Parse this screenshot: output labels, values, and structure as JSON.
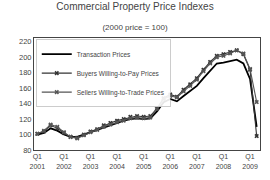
{
  "chart_data": {
    "type": "line",
    "title": "Commercial Property Price Indexes",
    "subtitle": "(2000 price = 100)",
    "categories": [
      "Q1\n2001",
      null,
      null,
      null,
      "Q1\n2002",
      null,
      null,
      null,
      "Q1\n2003",
      null,
      null,
      null,
      "Q1\n2004",
      null,
      null,
      null,
      "Q1\n2005",
      null,
      null,
      null,
      "Q1\n2006",
      null,
      null,
      null,
      "Q1\n2007",
      null,
      null,
      null,
      "Q1\n2008",
      null,
      null,
      null,
      "Q1\n2009",
      null
    ],
    "series": [
      {
        "name": "Transaction Prices",
        "color": "#000000",
        "line_style": "solid",
        "values": [
          100,
          102,
          108,
          105,
          100,
          97,
          97,
          100,
          103,
          106,
          110,
          113,
          116,
          118,
          120,
          121,
          120,
          121,
          130,
          142,
          146,
          143,
          150,
          156,
          163,
          173,
          183,
          192,
          193,
          195,
          197,
          192,
          172,
          110
        ]
      },
      {
        "name": "Buyers Willing-to-Pay Prices",
        "color": "#333333",
        "line_style": "solid",
        "marker": "x",
        "values": [
          101,
          104,
          112,
          108,
          102,
          97,
          96,
          100,
          104,
          107,
          112,
          115,
          118,
          120,
          123,
          124,
          123,
          124,
          134,
          147,
          152,
          149,
          158,
          165,
          173,
          184,
          194,
          202,
          204,
          207,
          209,
          204,
          184,
          98
        ]
      },
      {
        "name": "Sellers Willing-to-Trade Prices",
        "color": "#555555",
        "line_style": "solid",
        "marker": "x",
        "values": [
          101,
          105,
          113,
          110,
          103,
          97,
          95,
          99,
          103,
          106,
          110,
          113,
          116,
          118,
          121,
          122,
          121,
          122,
          133,
          146,
          150,
          148,
          156,
          163,
          171,
          182,
          192,
          200,
          202,
          205,
          209,
          205,
          185,
          142
        ]
      }
    ],
    "ylim": [
      80,
      225
    ],
    "yticks": [
      80,
      100,
      120,
      140,
      160,
      180,
      200,
      220
    ],
    "grid": false,
    "legend": "upper left"
  }
}
